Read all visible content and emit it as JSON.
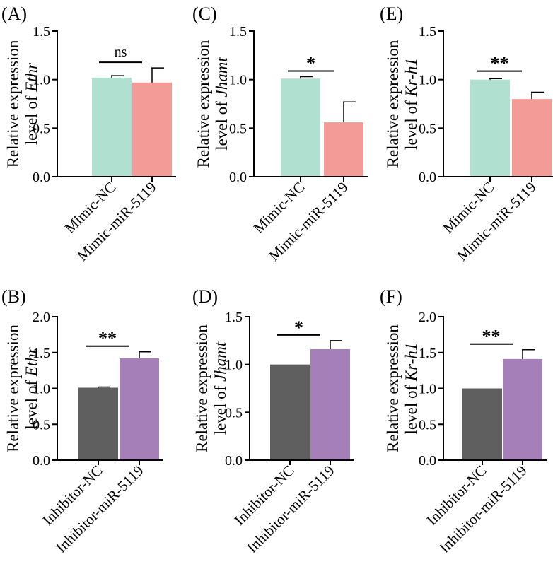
{
  "chart_data": [
    {
      "panel_label": "(A)",
      "type": "bar",
      "ylabel_line1": "Relative expression",
      "ylabel_line2_prefix": "level of ",
      "ylabel_gene": "Ethr",
      "ylim": [
        0,
        1.5
      ],
      "yticks": [
        "0.0",
        "0.5",
        "1.0",
        "1.5"
      ],
      "categories": [
        "Mimic-NC",
        "Mimic-miR-5119"
      ],
      "values": [
        1.02,
        0.97
      ],
      "errors": [
        0.02,
        0.15
      ],
      "colors": [
        "#b0e0d0",
        "#f29b97"
      ],
      "significance": "ns"
    },
    {
      "panel_label": "(C)",
      "type": "bar",
      "ylabel_line1": "Relative expression",
      "ylabel_line2_prefix": "level of ",
      "ylabel_gene": "Jhamt",
      "ylim": [
        0,
        1.5
      ],
      "yticks": [
        "0.0",
        "0.5",
        "1.0",
        "1.5"
      ],
      "categories": [
        "Mimic-NC",
        "Mimic-miR-5119"
      ],
      "values": [
        1.01,
        0.56
      ],
      "errors": [
        0.02,
        0.21
      ],
      "colors": [
        "#b0e0d0",
        "#f29b97"
      ],
      "significance": "*"
    },
    {
      "panel_label": "(E)",
      "type": "bar",
      "ylabel_line1": "Relative expression",
      "ylabel_line2_prefix": "level of ",
      "ylabel_gene": "Kr-h1",
      "ylim": [
        0,
        1.5
      ],
      "yticks": [
        "0.0",
        "0.5",
        "1.0",
        "1.5"
      ],
      "categories": [
        "Mimic-NC",
        "Mimic-miR-5119"
      ],
      "values": [
        1.0,
        0.8
      ],
      "errors": [
        0.01,
        0.07
      ],
      "colors": [
        "#b0e0d0",
        "#f29b97"
      ],
      "significance": "**"
    },
    {
      "panel_label": "(B)",
      "type": "bar",
      "ylabel_line1": "Relative expression",
      "ylabel_line2_prefix": "level of ",
      "ylabel_gene": "Ethr",
      "ylim": [
        0,
        2.0
      ],
      "yticks": [
        "0.0",
        "0.5",
        "1.0",
        "1.5",
        "2.0"
      ],
      "categories": [
        "Inhibitor-NC",
        "Inhibitor-miR-5119"
      ],
      "values": [
        1.01,
        1.42
      ],
      "errors": [
        0.01,
        0.09
      ],
      "colors": [
        "#5f5f5f",
        "#a57fb7"
      ],
      "significance": "**"
    },
    {
      "panel_label": "(D)",
      "type": "bar",
      "ylabel_line1": "Relative expression",
      "ylabel_line2_prefix": "level of ",
      "ylabel_gene": "Jhamt",
      "ylim": [
        0,
        1.5
      ],
      "yticks": [
        "0.0",
        "0.5",
        "1.0",
        "1.5"
      ],
      "categories": [
        "Inhibitor-NC",
        "Inhibitor-miR-5119"
      ],
      "values": [
        1.0,
        1.16
      ],
      "errors": [
        0.0,
        0.09
      ],
      "colors": [
        "#5f5f5f",
        "#a57fb7"
      ],
      "significance": "*"
    },
    {
      "panel_label": "(F)",
      "type": "bar",
      "ylabel_line1": "Relative expression",
      "ylabel_line2_prefix": "level of ",
      "ylabel_gene": "Kr-h1",
      "ylim": [
        0,
        2.0
      ],
      "yticks": [
        "0.0",
        "0.5",
        "1.0",
        "1.5",
        "2.0"
      ],
      "categories": [
        "Inhibitor-NC",
        "Inhibitor-miR-5119"
      ],
      "values": [
        1.0,
        1.41
      ],
      "errors": [
        0.0,
        0.13
      ],
      "colors": [
        "#5f5f5f",
        "#a57fb7"
      ],
      "significance": "**"
    }
  ]
}
